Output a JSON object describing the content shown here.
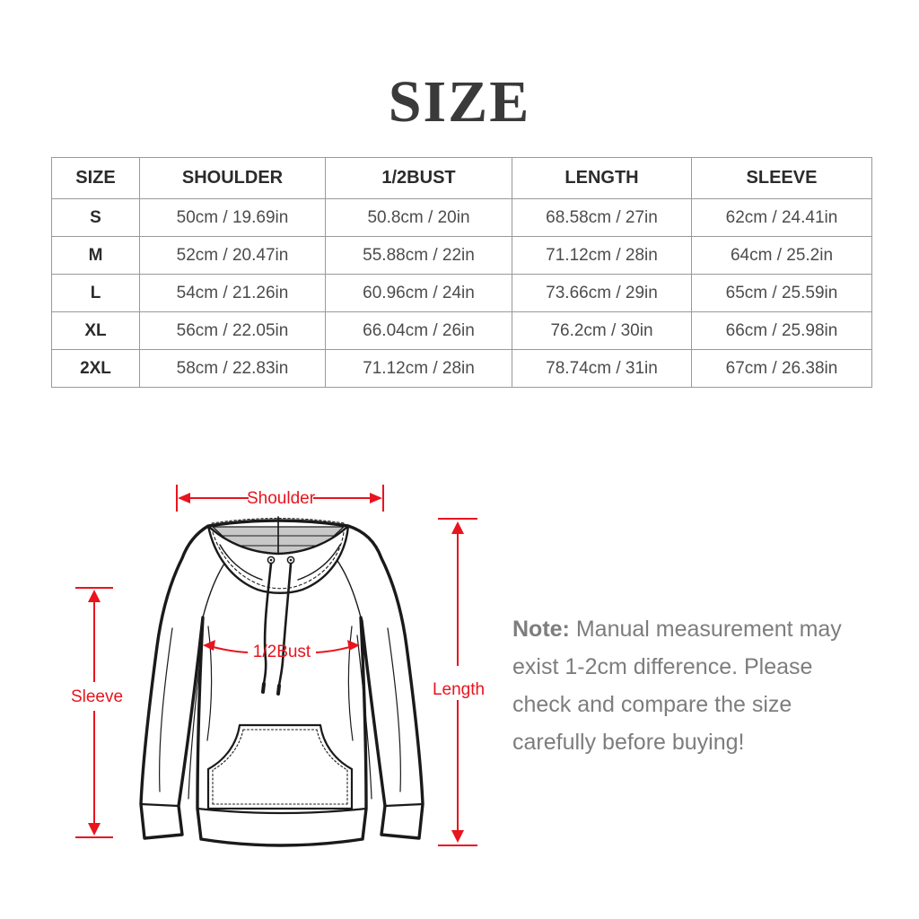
{
  "page": {
    "title": "SIZE",
    "background": "#ffffff"
  },
  "size_table": {
    "columns": [
      "SIZE",
      "SHOULDER",
      "1/2BUST",
      "LENGTH",
      "SLEEVE"
    ],
    "rows": [
      [
        "S",
        "50cm / 19.69in",
        "50.8cm / 20in",
        "68.58cm / 27in",
        "62cm / 24.41in"
      ],
      [
        "M",
        "52cm / 20.47in",
        "55.88cm / 22in",
        "71.12cm / 28in",
        "64cm / 25.2in"
      ],
      [
        "L",
        "54cm / 21.26in",
        "60.96cm / 24in",
        "73.66cm / 29in",
        "65cm / 25.59in"
      ],
      [
        "XL",
        "56cm / 22.05in",
        "66.04cm / 26in",
        "76.2cm / 30in",
        "66cm / 25.98in"
      ],
      [
        "2XL",
        "58cm / 22.83in",
        "71.12cm / 28in",
        "78.74cm / 31in",
        "67cm / 26.38in"
      ]
    ]
  },
  "diagram": {
    "labels": {
      "shoulder": "Shoulder",
      "half_bust": "1/2Bust",
      "length": "Length",
      "sleeve": "Sleeve"
    },
    "arrow_color": "#e8141e",
    "line_color": "#1a1a1a",
    "hood_inner_color": "#c8c8c8"
  },
  "note": {
    "label": "Note:",
    "line1": "Manual measurement may",
    "line2": "exist 1-2cm difference. Please",
    "line3": "check and compare the size",
    "line4": "carefully before buying!"
  }
}
